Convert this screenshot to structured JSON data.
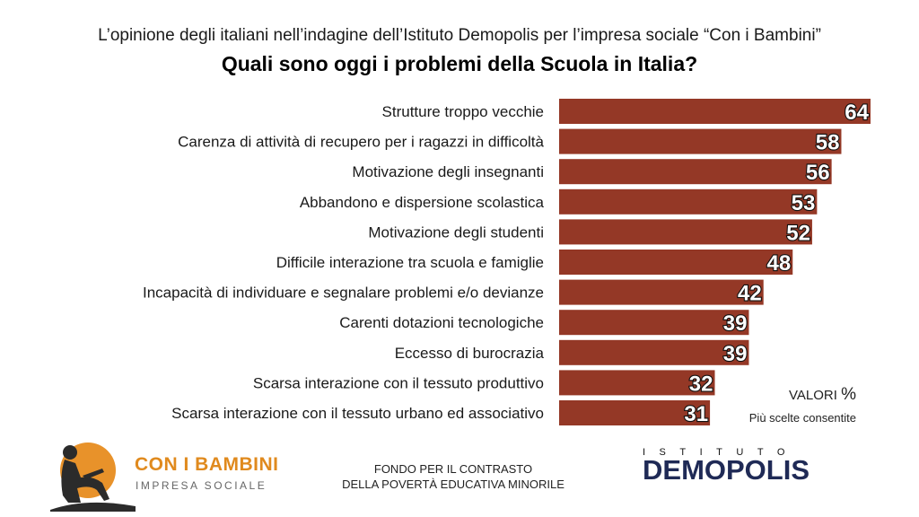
{
  "chart_data": {
    "type": "bar",
    "orientation": "horizontal",
    "subtitle": "L’opinione degli italiani nell’indagine dell’Istituto Demopolis per l’impresa sociale “Con i Bambini”",
    "title": "Quali sono oggi i problemi della Scuola in Italia?",
    "categories": [
      "Strutture troppo vecchie",
      "Carenza di attività di recupero per i ragazzi in difficoltà",
      "Motivazione degli insegnanti",
      "Abbandono e dispersione scolastica",
      "Motivazione degli studenti",
      "Difficile interazione tra scuola e famiglie",
      "Incapacità di individuare e segnalare problemi e/o devianze",
      "Carenti dotazioni tecnologiche",
      "Eccesso di burocrazia",
      "Scarsa interazione con il tessuto produttivo",
      "Scarsa interazione con il tessuto urbano ed associativo"
    ],
    "values": [
      64,
      58,
      56,
      53,
      52,
      48,
      42,
      39,
      39,
      32,
      31
    ],
    "xlim": [
      0,
      64
    ],
    "bar_color": "#943826",
    "grid": false,
    "value_labels": true
  },
  "notes": {
    "valori_text": "VALORI",
    "valori_pct": "%",
    "multi": "Più scelte consentite"
  },
  "footer": {
    "brand_name": "CON I BAMBINI",
    "brand_tag": "IMPRESA SOCIALE",
    "brand_color": "#e08a1e",
    "fund_line1": "FONDO PER IL CONTRASTO",
    "fund_line2": "DELLA POVERTÀ EDUCATIVA MINORILE",
    "demo_top": "ISTITUTO",
    "demo_name": "DEMOPOLIS",
    "demo_color": "#1f2a56"
  }
}
